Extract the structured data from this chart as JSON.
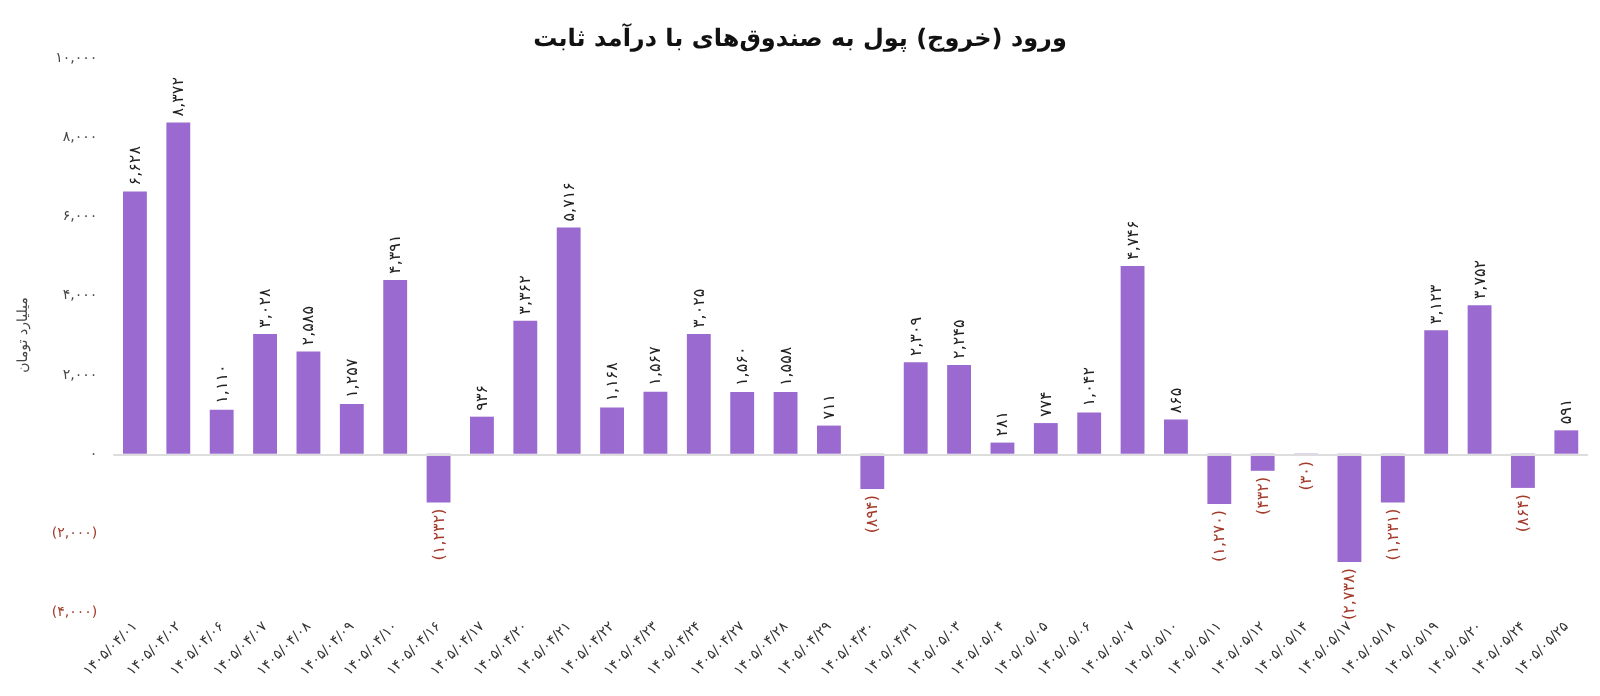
{
  "chart_data": {
    "type": "bar",
    "title": "ورود (خروج) پول به صندوق‌های با درآمد ثابت",
    "ylabel": "میلیارد تومان",
    "categories": [
      "۱۴۰۵/۰۴/۰۱",
      "۱۴۰۵/۰۴/۰۲",
      "۱۴۰۵/۰۴/۰۶",
      "۱۴۰۵/۰۴/۰۷",
      "۱۴۰۵/۰۴/۰۸",
      "۱۴۰۵/۰۴/۰۹",
      "۱۴۰۵/۰۴/۱۰",
      "۱۴۰۵/۰۴/۱۶",
      "۱۴۰۵/۰۴/۱۷",
      "۱۴۰۵/۰۴/۲۰",
      "۱۴۰۵/۰۴/۲۱",
      "۱۴۰۵/۰۴/۲۲",
      "۱۴۰۵/۰۴/۲۳",
      "۱۴۰۵/۰۴/۲۴",
      "۱۴۰۵/۰۴/۲۷",
      "۱۴۰۵/۰۴/۲۸",
      "۱۴۰۵/۰۴/۲۹",
      "۱۴۰۵/۰۴/۳۰",
      "۱۴۰۵/۰۴/۳۱",
      "۱۴۰۵/۰۵/۰۳",
      "۱۴۰۵/۰۵/۰۴",
      "۱۴۰۵/۰۵/۰۵",
      "۱۴۰۵/۰۵/۰۶",
      "۱۴۰۵/۰۵/۰۷",
      "۱۴۰۵/۰۵/۱۰",
      "۱۴۰۵/۰۵/۱۱",
      "۱۴۰۵/۰۵/۱۲",
      "۱۴۰۵/۰۵/۱۴",
      "۱۴۰۵/۰۵/۱۷",
      "۱۴۰۵/۰۵/۱۸",
      "۱۴۰۵/۰۵/۱۹",
      "۱۴۰۵/۰۵/۲۰",
      "۱۴۰۵/۰۵/۲۴",
      "۱۴۰۵/۰۵/۲۵"
    ],
    "values": [
      6628,
      8372,
      1110,
      3028,
      2585,
      1257,
      4391,
      -1232,
      936,
      3362,
      5716,
      1168,
      1567,
      3025,
      1560,
      1558,
      711,
      -894,
      2309,
      2245,
      281,
      774,
      1042,
      4746,
      865,
      -1270,
      -432,
      -30,
      -2738,
      -1231,
      3123,
      3752,
      -864,
      591
    ],
    "value_labels": [
      "۶,۶۲۸",
      "۸,۳۷۲",
      "۱,۱۱۰",
      "۳,۰۲۸",
      "۲,۵۸۵",
      "۱,۲۵۷",
      "۴,۳۹۱",
      "(۱,۲۳۲)",
      "۹۳۶",
      "۳,۳۶۲",
      "۵,۷۱۶",
      "۱,۱۶۸",
      "۱,۵۶۷",
      "۳,۰۲۵",
      "۱,۵۶۰",
      "۱,۵۵۸",
      "۷۱۱",
      "(۸۹۴)",
      "۲,۳۰۹",
      "۲,۲۴۵",
      "۲۸۱",
      "۷۷۴",
      "۱,۰۴۲",
      "۴,۷۴۶",
      "۸۶۵",
      "(۱,۲۷۰)",
      "(۴۳۲)",
      "(۳۰)",
      "(۲,۷۳۸)",
      "(۱,۲۳۱)",
      "۳,۱۲۳",
      "۳,۷۵۲",
      "(۸۶۴)",
      "۵۹۱"
    ],
    "color": "#9b6ad0",
    "ylim": [
      -4000,
      10000
    ],
    "yticks": [
      {
        "value": -4000,
        "label": "(۴,۰۰۰)"
      },
      {
        "value": -2000,
        "label": "(۲,۰۰۰)"
      },
      {
        "value": 0,
        "label": "۰"
      },
      {
        "value": 2000,
        "label": "۲,۰۰۰"
      },
      {
        "value": 4000,
        "label": "۴,۰۰۰"
      },
      {
        "value": 6000,
        "label": "۶,۰۰۰"
      },
      {
        "value": 8000,
        "label": "۸,۰۰۰"
      },
      {
        "value": 10000,
        "label": "۱۰,۰۰۰"
      }
    ],
    "ref_lines": [
      {
        "axis": "y",
        "value": 0,
        "color": "#dddddd"
      }
    ],
    "grid": false
  }
}
